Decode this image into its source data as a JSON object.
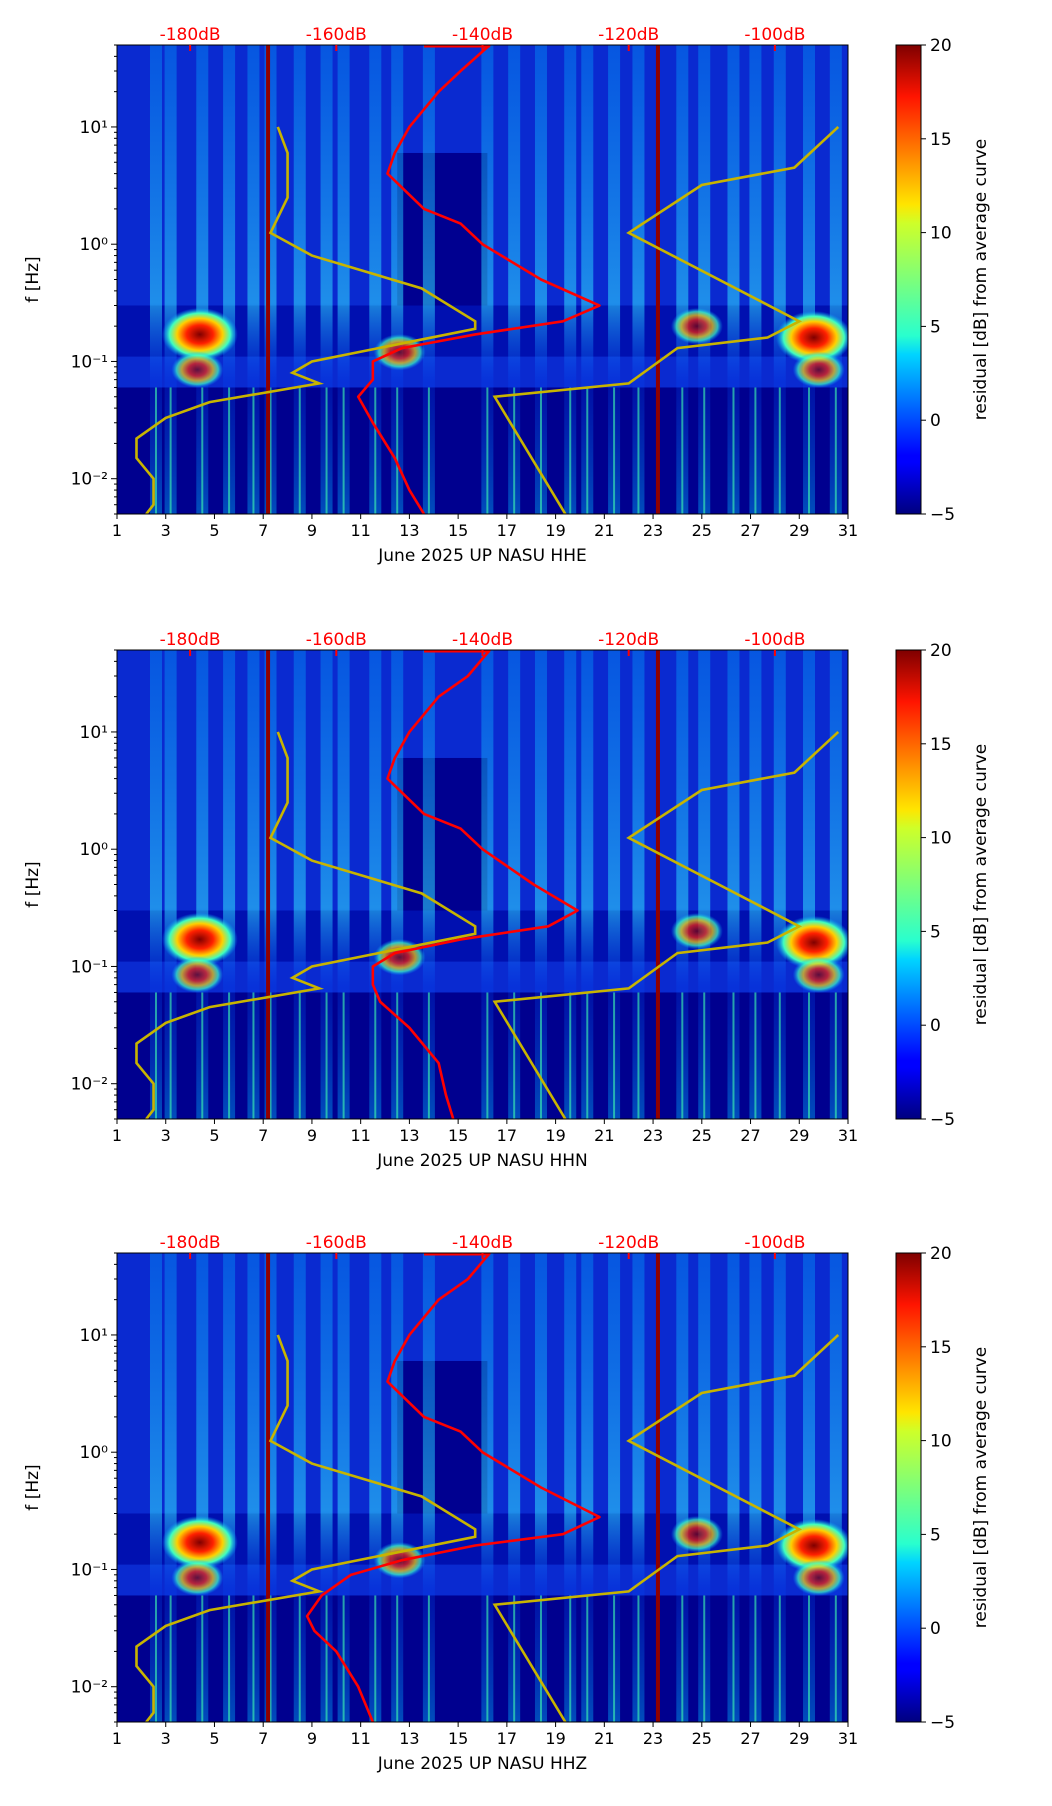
{
  "chart_data": {
    "type": "heatmap",
    "x_ticks": [
      "1",
      "3",
      "5",
      "7",
      "9",
      "11",
      "13",
      "15",
      "17",
      "19",
      "21",
      "23",
      "25",
      "27",
      "29",
      "31"
    ],
    "x_range_days": [
      1,
      31
    ],
    "y_label": "f [Hz]",
    "y_scale": "log",
    "y_range_hz": [
      0.005,
      50
    ],
    "y_ticks": [
      {
        "value": 10,
        "label": "10¹"
      },
      {
        "value": 1,
        "label": "10⁰"
      },
      {
        "value": 0.1,
        "label": "10⁻¹"
      },
      {
        "value": 0.01,
        "label": "10⁻²"
      }
    ],
    "top_axis_ticks": [
      {
        "label": "-180dB",
        "db": -180
      },
      {
        "label": "-160dB",
        "db": -160
      },
      {
        "label": "-140dB",
        "db": -140
      },
      {
        "label": "-120dB",
        "db": -120
      },
      {
        "label": "-100dB",
        "db": -100
      }
    ],
    "top_axis_color": "#ff0000",
    "colorbar": {
      "label": "residual [dB] from average curve",
      "range": [
        -5,
        20
      ],
      "ticks": [
        "20",
        "15",
        "10",
        "5",
        "0",
        "−5"
      ],
      "colormap": "jet"
    },
    "event_days": [
      2.6,
      3.2,
      4.5,
      5.6,
      6.6,
      7.3,
      8.5,
      9.6,
      10.3,
      11.6,
      12.5,
      13.8,
      16.2,
      17.3,
      18.4,
      19.6,
      20.3,
      21.4,
      22.4,
      24.2,
      25.1,
      26.3,
      27.2,
      28.2,
      29.4,
      30.5
    ],
    "hot_spots": [
      {
        "day": 4.4,
        "f": 0.17,
        "level": 20
      },
      {
        "day": 29.6,
        "f": 0.16,
        "level": 20
      },
      {
        "day": 12.6,
        "f": 0.12,
        "level": 12
      },
      {
        "day": 4.3,
        "f": 0.085,
        "level": 8
      },
      {
        "day": 29.8,
        "f": 0.085,
        "level": 10
      },
      {
        "day": 24.8,
        "f": 0.2,
        "level": 9
      }
    ],
    "dark_lines_days": [
      7.2,
      23.2
    ],
    "panels": [
      {
        "xlabel": "June 2025 UP NASU  HHE",
        "red_curve": [
          [
            -139,
            50
          ],
          [
            -143,
            30
          ],
          [
            -146,
            20
          ],
          [
            -150,
            10
          ],
          [
            -152,
            6
          ],
          [
            -153,
            4
          ],
          [
            -148,
            2
          ],
          [
            -143,
            1.5
          ],
          [
            -140,
            1
          ],
          [
            -132,
            0.5
          ],
          [
            -124,
            0.3
          ],
          [
            -129,
            0.22
          ],
          [
            -141,
            0.17
          ],
          [
            -151,
            0.13
          ],
          [
            -155,
            0.1
          ],
          [
            -155,
            0.07
          ],
          [
            -157,
            0.05
          ],
          [
            -155,
            0.03
          ],
          [
            -152,
            0.015
          ],
          [
            -150,
            0.008
          ],
          [
            -148,
            0.005
          ]
        ]
      },
      {
        "xlabel": "June 2025 UP NASU  HHN",
        "red_curve": [
          [
            -139,
            50
          ],
          [
            -142,
            30
          ],
          [
            -146,
            20
          ],
          [
            -150,
            10
          ],
          [
            -152,
            6
          ],
          [
            -153,
            4
          ],
          [
            -148,
            2
          ],
          [
            -143,
            1.5
          ],
          [
            -140,
            1
          ],
          [
            -133,
            0.5
          ],
          [
            -127,
            0.3
          ],
          [
            -131,
            0.22
          ],
          [
            -143,
            0.17
          ],
          [
            -152,
            0.13
          ],
          [
            -155,
            0.1
          ],
          [
            -155,
            0.07
          ],
          [
            -154,
            0.05
          ],
          [
            -150,
            0.03
          ],
          [
            -146,
            0.015
          ],
          [
            -145,
            0.008
          ],
          [
            -144,
            0.005
          ]
        ]
      },
      {
        "xlabel": "June 2025 UP NASU  HHZ",
        "red_curve": [
          [
            -139,
            50
          ],
          [
            -142,
            30
          ],
          [
            -146,
            20
          ],
          [
            -150,
            10
          ],
          [
            -152,
            6
          ],
          [
            -153,
            4
          ],
          [
            -148,
            2
          ],
          [
            -143,
            1.5
          ],
          [
            -140,
            1
          ],
          [
            -132,
            0.5
          ],
          [
            -124,
            0.28
          ],
          [
            -129,
            0.2
          ],
          [
            -141,
            0.16
          ],
          [
            -151,
            0.12
          ],
          [
            -158,
            0.09
          ],
          [
            -162,
            0.06
          ],
          [
            -164,
            0.04
          ],
          [
            -163,
            0.03
          ],
          [
            -160,
            0.02
          ],
          [
            -157,
            0.01
          ],
          [
            -155,
            0.005
          ]
        ]
      }
    ],
    "yellow_curve": [
      [
        7.6,
        10
      ],
      [
        8,
        6
      ],
      [
        8,
        2.5
      ],
      [
        7.3,
        1.25
      ],
      [
        9,
        0.8
      ],
      [
        13.5,
        0.42
      ],
      [
        15.7,
        0.22
      ],
      [
        15.7,
        0.19
      ],
      [
        9,
        0.1
      ],
      [
        8.2,
        0.08
      ],
      [
        9.3,
        0.065
      ],
      [
        4.8,
        0.045
      ],
      [
        3,
        0.033
      ],
      [
        1.8,
        0.022
      ],
      [
        1.8,
        0.015
      ],
      [
        2.5,
        0.01
      ],
      [
        2.5,
        0.006
      ],
      [
        2.2,
        0.005
      ]
    ],
    "yellow_curve_2": [
      [
        19.4,
        0.005
      ],
      [
        16.5,
        0.05
      ],
      [
        22,
        0.065
      ],
      [
        24,
        0.13
      ],
      [
        27.7,
        0.16
      ],
      [
        29,
        0.22
      ],
      [
        22,
        1.25
      ],
      [
        25,
        3.2
      ],
      [
        28.8,
        4.5
      ],
      [
        30.6,
        10
      ]
    ],
    "yellow_color": "#c8b400",
    "red_color": "#ff0000"
  }
}
